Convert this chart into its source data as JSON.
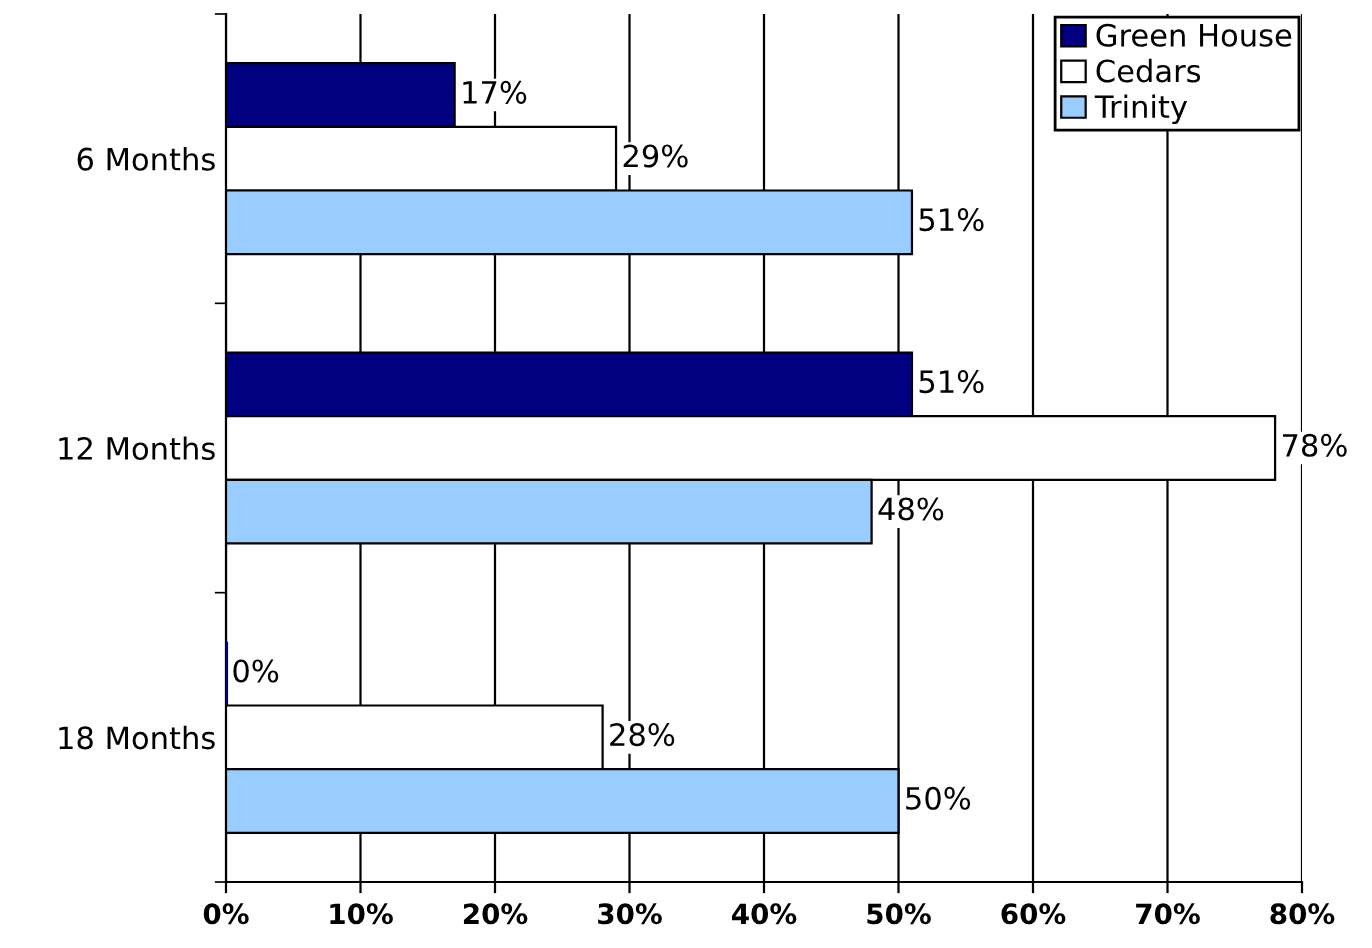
{
  "chart_data": {
    "type": "bar",
    "orientation": "horizontal",
    "categories": [
      "6 Months",
      "12 Months",
      "18 Months"
    ],
    "series": [
      {
        "name": "Green House",
        "color": "#000080",
        "values": [
          17,
          51,
          0
        ],
        "value_labels": [
          "17%",
          "51%",
          "0%"
        ]
      },
      {
        "name": "Cedars",
        "color": "#ffffff",
        "values": [
          29,
          78,
          28
        ],
        "value_labels": [
          "29%",
          "78%",
          "28%"
        ]
      },
      {
        "name": "Trinity",
        "color": "#99ccff",
        "values": [
          51,
          48,
          50
        ],
        "value_labels": [
          "51%",
          "48%",
          "50%"
        ]
      }
    ],
    "xlim": [
      0,
      80
    ],
    "xticks": [
      {
        "value": 0,
        "label": "0%"
      },
      {
        "value": 10,
        "label": "10%"
      },
      {
        "value": 20,
        "label": "20%"
      },
      {
        "value": 30,
        "label": "30%"
      },
      {
        "value": 40,
        "label": "40%"
      },
      {
        "value": 50,
        "label": "50%"
      },
      {
        "value": 60,
        "label": "60%"
      },
      {
        "value": 70,
        "label": "70%"
      },
      {
        "value": 80,
        "label": "80%"
      }
    ],
    "grid": "x",
    "legend": "top right"
  }
}
